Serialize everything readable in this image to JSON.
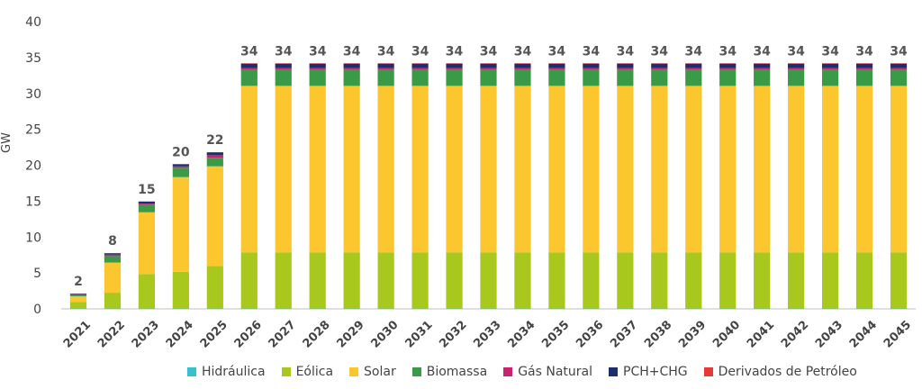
{
  "chart_data": {
    "type": "bar",
    "stacked": true,
    "ylabel": "GW",
    "ylim": [
      0,
      40
    ],
    "yticks": [
      0,
      5,
      10,
      15,
      20,
      25,
      30,
      35,
      40
    ],
    "grid": false,
    "legend_position": "bottom",
    "categories": [
      "2021",
      "2022",
      "2023",
      "2024",
      "2025",
      "2026",
      "2027",
      "2028",
      "2029",
      "2030",
      "2031",
      "2032",
      "2033",
      "2034",
      "2035",
      "2036",
      "2037",
      "2038",
      "2039",
      "2040",
      "2041",
      "2042",
      "2043",
      "2044",
      "2045"
    ],
    "totals": [
      2,
      8,
      15,
      20,
      22,
      34,
      34,
      34,
      34,
      34,
      34,
      34,
      34,
      34,
      34,
      34,
      34,
      34,
      34,
      34,
      34,
      34,
      34,
      34,
      34
    ],
    "series": [
      {
        "name": "Hidráulica",
        "color": "#3bbfcf",
        "values": [
          0.05,
          0.05,
          0.05,
          0.05,
          0.05,
          0.05,
          0.05,
          0.05,
          0.05,
          0.05,
          0.05,
          0.05,
          0.05,
          0.05,
          0.05,
          0.05,
          0.05,
          0.05,
          0.05,
          0.05,
          0.05,
          0.05,
          0.05,
          0.05,
          0.05
        ]
      },
      {
        "name": "Eólica",
        "color": "#a8c81e",
        "values": [
          0.9,
          2.2,
          4.8,
          5.1,
          5.9,
          7.8,
          7.8,
          7.8,
          7.8,
          7.8,
          7.8,
          7.8,
          7.8,
          7.8,
          7.8,
          7.8,
          7.8,
          7.8,
          7.8,
          7.8,
          7.8,
          7.8,
          7.8,
          7.8,
          7.8
        ]
      },
      {
        "name": "Solar",
        "color": "#fcc72e",
        "values": [
          0.8,
          4.2,
          8.6,
          13.2,
          13.9,
          23.2,
          23.2,
          23.2,
          23.2,
          23.2,
          23.2,
          23.2,
          23.2,
          23.2,
          23.2,
          23.2,
          23.2,
          23.2,
          23.2,
          23.2,
          23.2,
          23.2,
          23.2,
          23.2,
          23.2
        ]
      },
      {
        "name": "Biomassa",
        "color": "#3b9a47",
        "values": [
          0.3,
          0.9,
          1.0,
          1.3,
          1.2,
          2.3,
          2.3,
          2.3,
          2.3,
          2.3,
          2.3,
          2.3,
          2.3,
          2.3,
          2.3,
          2.3,
          2.3,
          2.3,
          2.3,
          2.3,
          2.3,
          2.3,
          2.3,
          2.3,
          2.3
        ]
      },
      {
        "name": "Gás Natural",
        "color": "#c8246e",
        "values": [
          0.02,
          0.2,
          0.2,
          0.2,
          0.35,
          0.2,
          0.2,
          0.2,
          0.2,
          0.2,
          0.2,
          0.2,
          0.2,
          0.2,
          0.2,
          0.2,
          0.2,
          0.2,
          0.2,
          0.2,
          0.2,
          0.2,
          0.2,
          0.2,
          0.2
        ]
      },
      {
        "name": "PCH+CHG",
        "color": "#1c2e6e",
        "values": [
          0.05,
          0.2,
          0.3,
          0.3,
          0.4,
          0.6,
          0.6,
          0.6,
          0.6,
          0.6,
          0.6,
          0.6,
          0.6,
          0.6,
          0.6,
          0.6,
          0.6,
          0.6,
          0.6,
          0.6,
          0.6,
          0.6,
          0.6,
          0.6,
          0.6
        ]
      },
      {
        "name": "Derivados de Petróleo",
        "color": "#e63a3a",
        "values": [
          0,
          0,
          0,
          0,
          0,
          0.05,
          0.05,
          0.05,
          0.05,
          0.05,
          0.05,
          0.05,
          0.05,
          0.05,
          0.05,
          0.05,
          0.05,
          0.05,
          0.05,
          0.05,
          0.05,
          0.05,
          0.05,
          0.05,
          0.05
        ]
      }
    ]
  }
}
